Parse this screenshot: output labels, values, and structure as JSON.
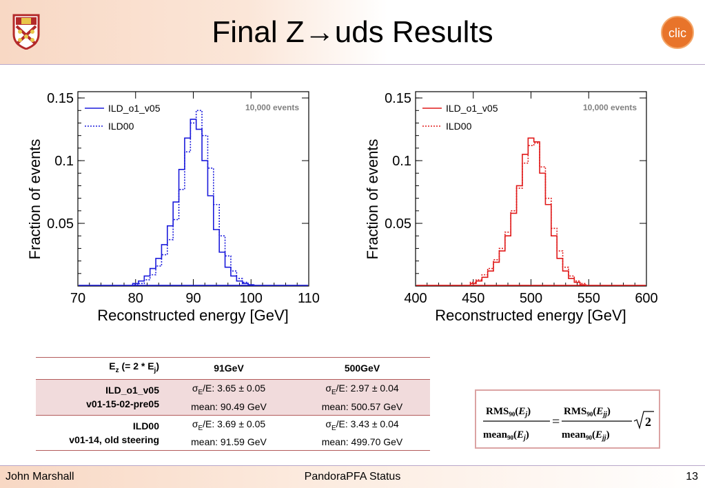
{
  "slide": {
    "title": "Final Z→uds Results"
  },
  "chart_data": [
    {
      "type": "line",
      "xlabel": "Reconstructed energy [GeV]",
      "ylabel": "Fraction of events",
      "xlim": [
        70,
        110
      ],
      "ylim": [
        0,
        0.155
      ],
      "x_ticks": [
        "70",
        "80",
        "90",
        "100",
        "110"
      ],
      "y_ticks": [
        "0.05",
        "0.1",
        "0.15"
      ],
      "annotation": "10,000 events",
      "legend_position": "top-left",
      "series": [
        {
          "name": "ILD_o1_v05",
          "color": "#1a1adb",
          "style": "solid",
          "x": [
            80,
            81,
            82,
            83,
            84,
            85,
            86,
            87,
            88,
            89,
            90,
            91,
            92,
            93,
            94,
            95,
            96,
            97,
            98,
            99,
            100
          ],
          "y": [
            0.002,
            0.004,
            0.008,
            0.014,
            0.022,
            0.033,
            0.048,
            0.067,
            0.093,
            0.118,
            0.133,
            0.125,
            0.1,
            0.072,
            0.045,
            0.027,
            0.015,
            0.008,
            0.004,
            0.002,
            0.001
          ]
        },
        {
          "name": "ILD00",
          "color": "#1a1adb",
          "style": "dotted",
          "x": [
            80,
            81,
            82,
            83,
            84,
            85,
            86,
            87,
            88,
            89,
            90,
            91,
            92,
            93,
            94,
            95,
            96,
            97,
            98,
            99,
            100
          ],
          "y": [
            0.001,
            0.002,
            0.005,
            0.009,
            0.016,
            0.025,
            0.037,
            0.053,
            0.077,
            0.107,
            0.13,
            0.14,
            0.12,
            0.094,
            0.065,
            0.04,
            0.024,
            0.012,
            0.006,
            0.003,
            0.001
          ]
        }
      ]
    },
    {
      "type": "line",
      "xlabel": "Reconstructed energy [GeV]",
      "ylabel": "Fraction of events",
      "xlim": [
        400,
        600
      ],
      "ylim": [
        0,
        0.155
      ],
      "x_ticks": [
        "400",
        "450",
        "500",
        "550",
        "600"
      ],
      "y_ticks": [
        "0.05",
        "0.1",
        "0.15"
      ],
      "annotation": "10,000 events",
      "legend_position": "top-left",
      "series": [
        {
          "name": "ILD_o1_v05",
          "color": "#e01818",
          "style": "solid",
          "x": [
            450,
            455,
            460,
            465,
            470,
            475,
            480,
            485,
            490,
            495,
            500,
            505,
            510,
            515,
            520,
            525,
            530,
            535,
            540,
            545
          ],
          "y": [
            0.002,
            0.004,
            0.007,
            0.012,
            0.019,
            0.028,
            0.04,
            0.058,
            0.08,
            0.105,
            0.118,
            0.115,
            0.09,
            0.065,
            0.04,
            0.022,
            0.012,
            0.006,
            0.003,
            0.001
          ]
        },
        {
          "name": "ILD00",
          "color": "#e01818",
          "style": "dotted",
          "x": [
            450,
            455,
            460,
            465,
            470,
            475,
            480,
            485,
            490,
            495,
            500,
            505,
            510,
            515,
            520,
            525,
            530,
            535,
            540,
            545
          ],
          "y": [
            0.003,
            0.005,
            0.009,
            0.014,
            0.021,
            0.03,
            0.043,
            0.06,
            0.078,
            0.098,
            0.112,
            0.114,
            0.095,
            0.07,
            0.046,
            0.028,
            0.015,
            0.008,
            0.004,
            0.002
          ]
        }
      ]
    }
  ],
  "table": {
    "header": [
      "E",
      "z",
      " (= 2 * E",
      "j",
      ")",
      "91GeV",
      "500GeV"
    ],
    "rows": [
      {
        "label_line1": "ILD_o1_v05",
        "label_line2": "v01-15-02-pre05",
        "c91": {
          "sigma_prefix": "σ",
          "sigma_sub": "E",
          "sigma_rest": "/E: 3.65 ± 0.05",
          "mean": "mean: 90.49 GeV"
        },
        "c500": {
          "sigma_prefix": "σ",
          "sigma_sub": "E",
          "sigma_rest": "/E: 2.97 ± 0.04",
          "mean": "mean: 500.57 GeV"
        }
      },
      {
        "label_line1": "ILD00",
        "label_line2": "v01-14, old steering",
        "c91": {
          "sigma_prefix": "σ",
          "sigma_sub": "E",
          "sigma_rest": "/E: 3.69 ± 0.05",
          "mean": "mean: 91.59 GeV"
        },
        "c500": {
          "sigma_prefix": "σ",
          "sigma_sub": "E",
          "sigma_rest": "/E: 3.43 ± 0.04",
          "mean": "mean: 499.70 GeV"
        }
      }
    ]
  },
  "formula": {
    "rms": "RMS",
    "sub90": "90",
    "mean": "mean",
    "ej": "E",
    "j": "j",
    "jj": "jj",
    "equals": "=",
    "two": "2",
    "lparen": "(",
    "rparen": ")"
  },
  "footer": {
    "author": "John Marshall",
    "talk": "PandoraPFA Status",
    "page": "13"
  },
  "logos": {
    "left": "university-crest-icon",
    "right": "clic-logo-icon",
    "clic_letters": "clic",
    "clic_color": "#e8742a"
  }
}
